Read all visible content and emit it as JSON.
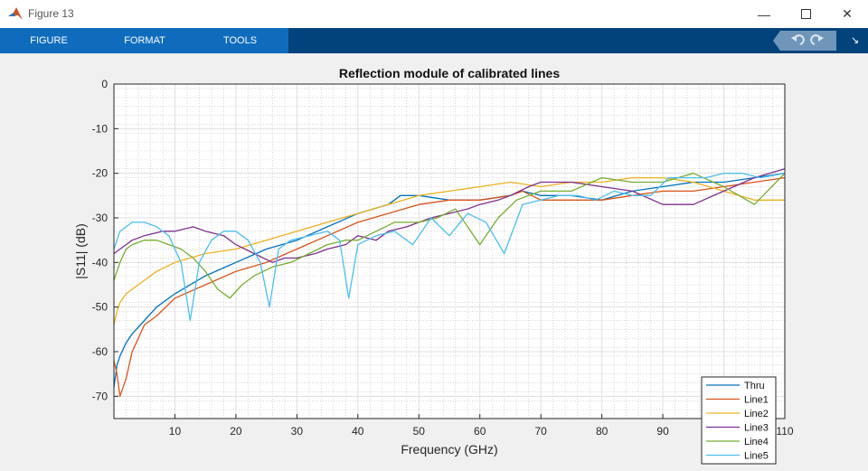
{
  "window": {
    "title": "Figure 13",
    "minimize_icon": "minimize-icon",
    "maximize_icon": "maximize-icon",
    "close_icon": "close-icon"
  },
  "toolstrip": {
    "tabs": [
      {
        "label": "FIGURE"
      },
      {
        "label": "FORMAT"
      },
      {
        "label": "TOOLS"
      }
    ]
  },
  "chart_data": {
    "type": "line",
    "title": "Reflection module of calibrated lines",
    "xlabel": "Frequency (GHz)",
    "ylabel": "|S11| (dB)",
    "xlim": [
      0,
      110
    ],
    "ylim": [
      -75,
      0
    ],
    "xticks": [
      10,
      20,
      30,
      40,
      50,
      60,
      70,
      80,
      90,
      100,
      110
    ],
    "yticks": [
      0,
      -10,
      -20,
      -30,
      -40,
      -50,
      -60,
      -70
    ],
    "grid": true,
    "minor_grid": true,
    "legend": "bottom-right",
    "series": [
      {
        "name": "Thru",
        "color": "#0072bd",
        "x": [
          0,
          0.5,
          1,
          2,
          3,
          5,
          7,
          10,
          15,
          20,
          25,
          30,
          35,
          40,
          45,
          47,
          50,
          55,
          60,
          65,
          67,
          70,
          75,
          80,
          85,
          90,
          95,
          100,
          105,
          110
        ],
        "y": [
          -68,
          -63,
          -61,
          -58,
          -56,
          -53,
          -50,
          -47,
          -43,
          -40,
          -37,
          -35,
          -32,
          -29,
          -27,
          -25,
          -25,
          -26,
          -26,
          -25,
          -24,
          -25,
          -25,
          -26,
          -24,
          -23,
          -22,
          -22,
          -21,
          -20
        ]
      },
      {
        "name": "Line1",
        "color": "#d95319",
        "x": [
          0,
          0.5,
          1,
          2,
          3,
          5,
          7,
          10,
          15,
          20,
          25,
          30,
          35,
          40,
          45,
          50,
          55,
          60,
          65,
          67,
          70,
          75,
          80,
          85,
          90,
          95,
          100,
          105,
          110
        ],
        "y": [
          -62,
          -65,
          -70,
          -66,
          -60,
          -54,
          -52,
          -48,
          -45,
          -42,
          -40,
          -37,
          -34,
          -31,
          -29,
          -27,
          -26,
          -26,
          -25,
          -24,
          -26,
          -26,
          -26,
          -25,
          -24,
          -24,
          -23,
          -22,
          -21
        ]
      },
      {
        "name": "Line2",
        "color": "#edb120",
        "x": [
          0,
          0.5,
          1,
          2,
          3,
          5,
          7,
          10,
          15,
          20,
          25,
          30,
          35,
          40,
          45,
          50,
          55,
          60,
          65,
          70,
          75,
          80,
          85,
          90,
          95,
          100,
          105,
          110
        ],
        "y": [
          -54,
          -51,
          -49,
          -47,
          -46,
          -44,
          -42,
          -40,
          -38,
          -37,
          -35,
          -33,
          -31,
          -29,
          -27,
          -25,
          -24,
          -23,
          -22,
          -23,
          -22,
          -22,
          -21,
          -21,
          -22,
          -24,
          -26,
          -26
        ]
      },
      {
        "name": "Line3",
        "color": "#7e2f8e",
        "x": [
          0,
          1,
          2,
          3,
          5,
          8,
          10,
          13,
          15,
          18,
          20,
          23,
          26,
          28,
          30,
          33,
          35,
          38,
          40,
          43,
          45,
          48,
          50,
          52,
          55,
          58,
          60,
          63,
          65,
          68,
          70,
          75,
          80,
          85,
          90,
          95,
          100,
          105,
          110
        ],
        "y": [
          -38,
          -37,
          -36,
          -35,
          -34,
          -33,
          -33,
          -32,
          -33,
          -34,
          -36,
          -38,
          -40,
          -39,
          -39,
          -38,
          -37,
          -36,
          -34,
          -35,
          -33,
          -32,
          -31,
          -30,
          -29,
          -28,
          -27,
          -26,
          -25,
          -23,
          -22,
          -22,
          -23,
          -24,
          -27,
          -27,
          -24,
          -21,
          -19
        ]
      },
      {
        "name": "Line4",
        "color": "#77ac30",
        "x": [
          0,
          1,
          2,
          3,
          5,
          7,
          9,
          11,
          13,
          15,
          17,
          19,
          21,
          23,
          26,
          29,
          32,
          35,
          38,
          40,
          43,
          46,
          50,
          53,
          56,
          60,
          63,
          66,
          70,
          75,
          80,
          85,
          90,
          95,
          100,
          105,
          110
        ],
        "y": [
          -44,
          -40,
          -37,
          -36,
          -35,
          -35,
          -36,
          -37,
          -39,
          -42,
          -46,
          -48,
          -45,
          -43,
          -41,
          -40,
          -38,
          -36,
          -35,
          -35,
          -33,
          -31,
          -31,
          -30,
          -28,
          -36,
          -30,
          -26,
          -24,
          -24,
          -21,
          -22,
          -22,
          -20,
          -23,
          -27,
          -20
        ]
      },
      {
        "name": "Line5",
        "color": "#4dbeee",
        "x": [
          0,
          1,
          2,
          3,
          5,
          7,
          9,
          11,
          12.5,
          14,
          16,
          18,
          20,
          22,
          24,
          25.5,
          27,
          29,
          32,
          35,
          37,
          38.5,
          40,
          43,
          46,
          49,
          52,
          55,
          58,
          61,
          64,
          67,
          70,
          73,
          76,
          79,
          82,
          85,
          88,
          91,
          94,
          97,
          100,
          103,
          106,
          110
        ],
        "y": [
          -37,
          -33,
          -32,
          -31,
          -31,
          -32,
          -34,
          -40,
          -53,
          -40,
          -35,
          -33,
          -33,
          -35,
          -40,
          -50,
          -37,
          -35,
          -34,
          -33,
          -35,
          -48,
          -36,
          -34,
          -33,
          -36,
          -30,
          -34,
          -29,
          -31,
          -38,
          -27,
          -26,
          -25,
          -25,
          -26,
          -24,
          -25,
          -25,
          -21,
          -21,
          -21,
          -20,
          -20,
          -21,
          -20
        ]
      }
    ]
  }
}
